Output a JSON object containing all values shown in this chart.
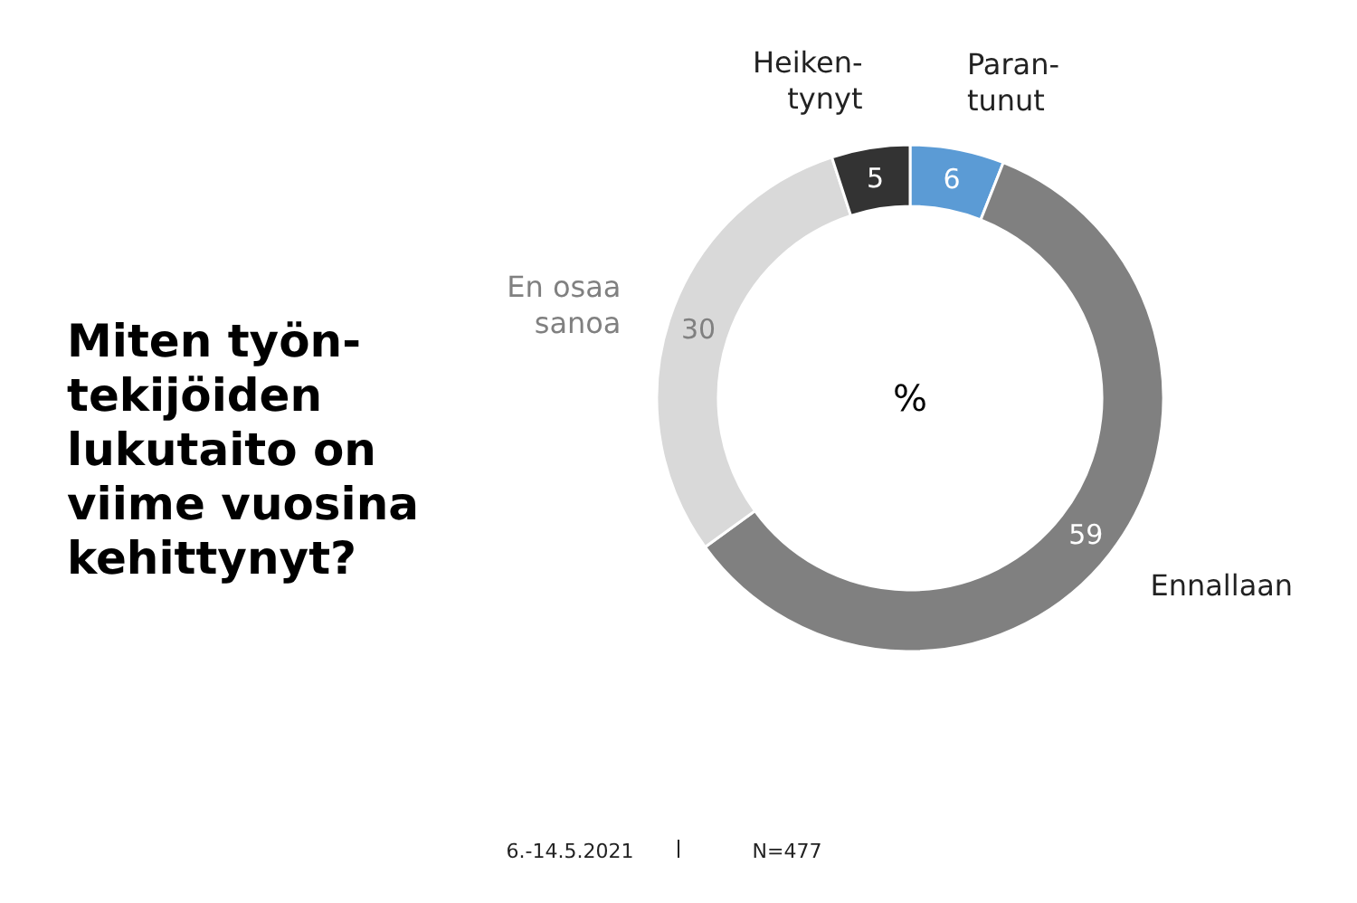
{
  "chart_data": {
    "type": "donut",
    "title": "Miten työn-\ntekijöiden\nlukutaito on\nviime vuosina\nkehittynyt?",
    "categories": [
      "Paran-\ntunut",
      "Ennallaan",
      "En osaa\nsanoa",
      "Heiken-\ntynyt"
    ],
    "values": [
      6,
      59,
      30,
      5
    ],
    "colors": [
      "#5b9bd5",
      "#808080",
      "#d9d9d9",
      "#333333"
    ],
    "data_labels": true,
    "annotations": [
      "%",
      "6.-14.5.2021",
      "N=477"
    ]
  }
}
